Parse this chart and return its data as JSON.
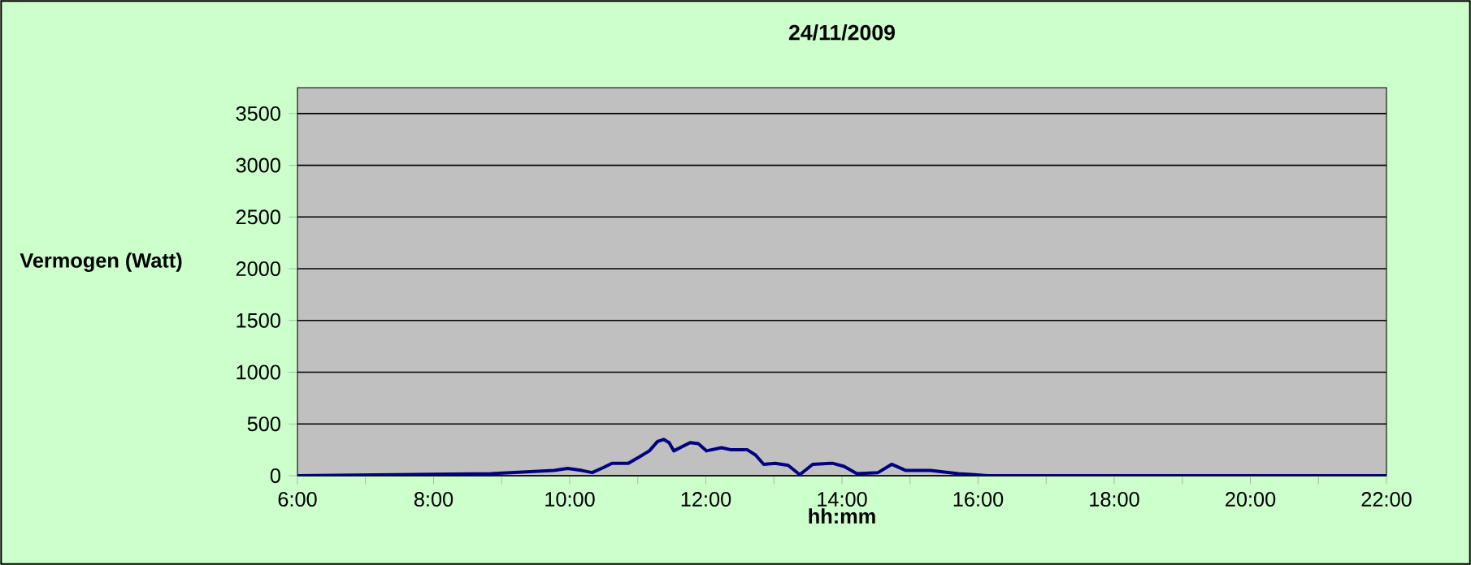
{
  "chart_data": {
    "type": "line",
    "title": "24/11/2009",
    "xlabel": "hh:mm",
    "ylabel": "Vermogen (Watt)",
    "x": [
      6,
      8.84,
      9.77,
      9.97,
      10.18,
      10.33,
      10.5,
      10.62,
      10.86,
      11.02,
      11.17,
      11.29,
      11.38,
      11.46,
      11.53,
      11.65,
      11.77,
      11.89,
      12.01,
      12.23,
      12.37,
      12.61,
      12.73,
      12.85,
      13.02,
      13.21,
      13.38,
      13.57,
      13.86,
      14.03,
      14.22,
      14.53,
      14.73,
      14.94,
      15.3,
      15.71,
      15.95,
      16.14,
      22
    ],
    "series": [
      {
        "color": "#000080",
        "values": [
          0,
          20,
          50,
          70,
          50,
          30,
          80,
          120,
          120,
          180,
          240,
          330,
          350,
          320,
          240,
          280,
          320,
          310,
          240,
          270,
          250,
          250,
          200,
          110,
          120,
          100,
          10,
          110,
          120,
          90,
          20,
          30,
          110,
          50,
          50,
          20,
          10,
          0,
          0
        ]
      }
    ],
    "xlim": [
      6,
      22
    ],
    "ylim": [
      0,
      3750
    ],
    "xticks": [
      {
        "value": 6,
        "label": "6:00"
      },
      {
        "value": 7,
        "label": null
      },
      {
        "value": 8,
        "label": "8:00"
      },
      {
        "value": 9,
        "label": null
      },
      {
        "value": 10,
        "label": "10:00"
      },
      {
        "value": 11,
        "label": null
      },
      {
        "value": 12,
        "label": "12:00"
      },
      {
        "value": 13,
        "label": null
      },
      {
        "value": 14,
        "label": "14:00"
      },
      {
        "value": 15,
        "label": null
      },
      {
        "value": 16,
        "label": "16:00"
      },
      {
        "value": 17,
        "label": null
      },
      {
        "value": 18,
        "label": "18:00"
      },
      {
        "value": 19,
        "label": null
      },
      {
        "value": 20,
        "label": "20:00"
      },
      {
        "value": 21,
        "label": null
      },
      {
        "value": 22,
        "label": "22:00"
      }
    ],
    "yticks": [
      0,
      500,
      1000,
      1500,
      2000,
      2500,
      3000,
      3500
    ],
    "grid": "y",
    "marker": "none",
    "line_style": "solid"
  }
}
